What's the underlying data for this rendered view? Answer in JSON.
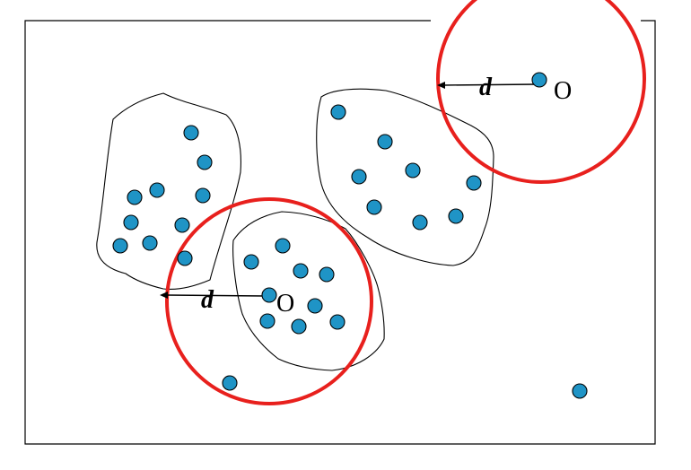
{
  "colors": {
    "point_fill": "#1f94c6",
    "circle_stroke": "#e8201d",
    "outline": "#000000",
    "background": "#ffffff"
  },
  "labels": {
    "radius_1": "d",
    "core_1": "O",
    "radius_2": "d",
    "core_2": "O"
  },
  "point_count": 34,
  "clusters": 3,
  "noise_points": 2
}
